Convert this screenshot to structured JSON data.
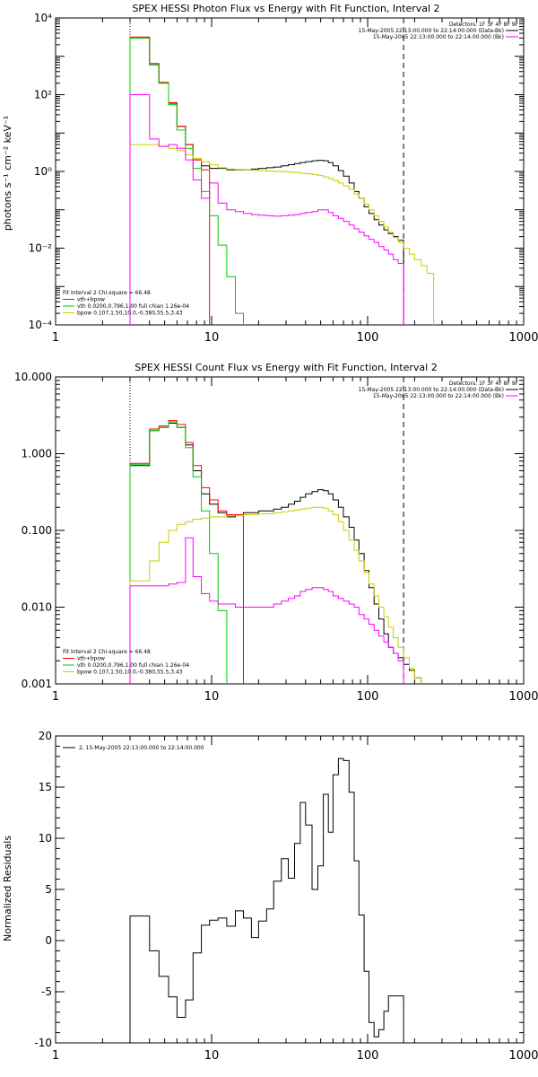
{
  "chart_data": [
    {
      "type": "line",
      "title": "SPEX HESSI Photon Flux vs Energy with Fit Function, Interval 2",
      "ylabel": "photons s⁻¹ cm⁻² keV⁻¹",
      "xlabel": "",
      "xscale": "log",
      "yscale": "log",
      "xlim": [
        1,
        1000
      ],
      "ylim": [
        0.0001,
        10000
      ],
      "xticks": [
        {
          "v": 1,
          "label": "1"
        },
        {
          "v": 10,
          "label": "10"
        },
        {
          "v": 100,
          "label": "100"
        },
        {
          "v": 1000,
          "label": "1000"
        }
      ],
      "yticks": [
        {
          "v": 0.0001,
          "label": "10⁻⁴"
        },
        {
          "v": 0.01,
          "label": "10⁻²"
        },
        {
          "v": 1,
          "label": "10⁰"
        },
        {
          "v": 100,
          "label": "10²"
        },
        {
          "v": 10000,
          "label": "10⁴"
        }
      ],
      "vlines": [
        {
          "x": 3,
          "style": "dotted"
        },
        {
          "x": 170,
          "style": "dashed"
        }
      ],
      "legend_right": {
        "lines": [
          "Detectors: 1F 3F 4F 8F 9F",
          "15-May-2005 22:13:00.000 to 22:14:00.000 (Data-Bk)",
          "15-May-2005 22:13:00.000 to 22:14:00.000 (Bk)"
        ],
        "colors": [
          null,
          "#000000",
          "#ff00ff"
        ]
      },
      "legend_left": {
        "lines": [
          "Fit Interval 2   Chi-square = 66.48",
          "vth+bpow",
          "vth 0.0200,0.796,1.00  full chian 1.26e-04",
          "bpow 0.107,1.50,10.0,-0.380,55.5,3.43"
        ],
        "colors": [
          null,
          "#ff0000",
          "#00cc00",
          "#cccc00"
        ]
      },
      "series": [
        {
          "color": "#000000",
          "edges": [
            3,
            3.4,
            4,
            4.6,
            5.3,
            6,
            6.8,
            7.6,
            8.6,
            9.7,
            11,
            12.5,
            14.2,
            16,
            18,
            20,
            22.5,
            25,
            28,
            31,
            34,
            37,
            40,
            44,
            48,
            52,
            56,
            60,
            65,
            70,
            76,
            82,
            88,
            95,
            102,
            110,
            118,
            127,
            136,
            146,
            157,
            170
          ],
          "values": [
            3000,
            3000,
            600,
            200,
            60,
            15,
            5,
            2,
            1.4,
            1.2,
            1.2,
            1.1,
            1.1,
            1.1,
            1.15,
            1.2,
            1.25,
            1.3,
            1.4,
            1.5,
            1.6,
            1.7,
            1.8,
            1.9,
            1.95,
            1.9,
            1.7,
            1.4,
            1.05,
            0.75,
            0.5,
            0.3,
            0.2,
            0.12,
            0.08,
            0.055,
            0.04,
            0.03,
            0.024,
            0.02,
            0.016
          ]
        },
        {
          "color": "#ff0000",
          "edges": [
            3,
            3.4,
            4,
            4.6,
            5.3,
            6,
            6.8,
            7.6,
            8.6,
            9.7
          ],
          "values": [
            3200,
            3200,
            650,
            210,
            62,
            15,
            5,
            2,
            1.1
          ]
        },
        {
          "color": "#00cc00",
          "edges": [
            3,
            3.4,
            4,
            4.6,
            5.3,
            6,
            6.8,
            7.6,
            8.6,
            9.7,
            11,
            12.5,
            14.2,
            16
          ],
          "values": [
            3000,
            3000,
            600,
            200,
            55,
            12,
            4,
            1.2,
            0.3,
            0.07,
            0.012,
            0.0018,
            0.0002
          ]
        },
        {
          "color": "#cccc00",
          "edges": [
            3,
            3.4,
            4,
            4.6,
            5.3,
            6,
            6.8,
            7.6,
            8.6,
            9.7,
            11,
            12.5,
            14.2,
            16,
            18,
            20,
            22.5,
            25,
            28,
            31,
            34,
            37,
            40,
            44,
            48,
            52,
            56,
            60,
            65,
            70,
            76,
            82,
            88,
            95,
            102,
            110,
            118,
            127,
            136,
            146,
            157,
            170,
            185,
            200,
            220,
            240,
            265,
            290
          ],
          "values": [
            5,
            5,
            5,
            4.6,
            4,
            3.5,
            2.7,
            2.2,
            1.8,
            1.5,
            1.25,
            1.15,
            1.12,
            1.1,
            1.08,
            1.05,
            1.02,
            1,
            0.98,
            0.96,
            0.93,
            0.9,
            0.87,
            0.83,
            0.78,
            0.72,
            0.65,
            0.58,
            0.5,
            0.42,
            0.34,
            0.26,
            0.2,
            0.14,
            0.1,
            0.07,
            0.05,
            0.036,
            0.026,
            0.019,
            0.014,
            0.01,
            0.007,
            0.005,
            0.0035,
            0.0022,
            8e-05
          ]
        },
        {
          "color": "#ff00ff",
          "edges": [
            3,
            3.4,
            4,
            4.6,
            5.3,
            6,
            6.8,
            7.6,
            8.6,
            9.7,
            11,
            12.5,
            14.2,
            16,
            18,
            20,
            22.5,
            25,
            28,
            31,
            34,
            37,
            40,
            44,
            48,
            52,
            56,
            60,
            65,
            70,
            76,
            82,
            88,
            95,
            102,
            110,
            118,
            127,
            136,
            146,
            157,
            170
          ],
          "values": [
            100,
            100,
            7,
            4.5,
            5,
            4,
            2,
            0.6,
            0.2,
            0.5,
            0.15,
            0.1,
            0.09,
            0.08,
            0.075,
            0.072,
            0.07,
            0.068,
            0.07,
            0.072,
            0.075,
            0.08,
            0.085,
            0.09,
            0.1,
            0.1,
            0.085,
            0.07,
            0.06,
            0.05,
            0.04,
            0.032,
            0.026,
            0.021,
            0.017,
            0.014,
            0.011,
            0.009,
            0.007,
            0.005,
            0.004
          ]
        }
      ]
    },
    {
      "type": "line",
      "title": "SPEX HESSI Count Flux vs Energy with Fit Function, Interval 2",
      "ylabel": "",
      "xlabel": "",
      "xscale": "log",
      "yscale": "log",
      "xlim": [
        1,
        1000
      ],
      "ylim": [
        0.001,
        10
      ],
      "xticks": [
        {
          "v": 1,
          "label": "1"
        },
        {
          "v": 10,
          "label": "10"
        },
        {
          "v": 100,
          "label": "100"
        },
        {
          "v": 1000,
          "label": "1000"
        }
      ],
      "yticks": [
        {
          "v": 0.001,
          "label": "0.001"
        },
        {
          "v": 0.01,
          "label": "0.010"
        },
        {
          "v": 0.1,
          "label": "0.100"
        },
        {
          "v": 1,
          "label": "1.000"
        },
        {
          "v": 10,
          "label": "10.000"
        }
      ],
      "vlines": [
        {
          "x": 3,
          "style": "dotted"
        },
        {
          "x": 170,
          "style": "dashed"
        }
      ],
      "legend_right": {
        "lines": [
          "Detectors: 1F 3F 4F 8F 9F",
          "15-May-2005 22:13:00.000 to 22:14:00.000 (Data-Bk)",
          "15-May-2005 22:13:00.000 to 22:14:00.000 (Bk)"
        ],
        "colors": [
          null,
          "#000000",
          "#ff00ff"
        ]
      },
      "legend_left": {
        "lines": [
          "Fit Interval 2   Chi-square = 66.48",
          "vth+bpow",
          "vth 0.0200,0.796,1.00  full chian 1.26e-04",
          "bpow 0.107,1.50,10.0,-0.380,55.5,3.43"
        ],
        "colors": [
          null,
          "#ff0000",
          "#00cc00",
          "#cccc00"
        ]
      },
      "series": [
        {
          "color": "#000000",
          "edges": [
            3,
            3.4,
            4,
            4.6,
            5.3,
            6,
            6.8,
            7.6,
            8.6,
            9.7,
            11,
            12.5,
            14.2,
            16,
            18,
            20,
            22.5,
            25,
            28,
            31,
            34,
            37,
            40,
            44,
            48,
            52,
            56,
            60,
            65,
            70,
            76,
            82,
            88,
            95,
            102,
            110,
            118,
            127,
            136,
            146,
            157,
            170,
            185,
            200,
            220
          ],
          "values": [
            0.7,
            0.7,
            2,
            2.2,
            2.5,
            2.2,
            1.3,
            0.6,
            0.3,
            0.22,
            0.17,
            0.15,
            0.16,
            0.17,
            0.17,
            0.18,
            0.18,
            0.19,
            0.2,
            0.22,
            0.24,
            0.27,
            0.3,
            0.32,
            0.34,
            0.33,
            0.3,
            0.25,
            0.2,
            0.15,
            0.11,
            0.075,
            0.05,
            0.03,
            0.018,
            0.011,
            0.007,
            0.0045,
            0.003,
            0.0025,
            0.0022,
            0.0018,
            0.0015,
            0.0012
          ]
        },
        {
          "color": "#ff0000",
          "edges": [
            3,
            3.4,
            4,
            4.6,
            5.3,
            6,
            6.8,
            7.6,
            8.6,
            9.7,
            11,
            12.5,
            14.2,
            16
          ],
          "values": [
            0.75,
            0.75,
            2.1,
            2.3,
            2.7,
            2.4,
            1.4,
            0.7,
            0.36,
            0.25,
            0.18,
            0.16,
            0.16
          ]
        },
        {
          "color": "#00cc00",
          "edges": [
            3,
            3.4,
            4,
            4.6,
            5.3,
            6,
            6.8,
            7.6,
            8.6,
            9.7,
            11,
            12.5
          ],
          "values": [
            0.72,
            0.72,
            2,
            2.2,
            2.6,
            2.2,
            1.2,
            0.5,
            0.18,
            0.05,
            0.009
          ]
        },
        {
          "color": "#cccc00",
          "edges": [
            3,
            3.4,
            4,
            4.6,
            5.3,
            6,
            6.8,
            7.6,
            8.6,
            9.7,
            11,
            12.5,
            14.2,
            16,
            18,
            20,
            22.5,
            25,
            28,
            31,
            34,
            37,
            40,
            44,
            48,
            52,
            56,
            60,
            65,
            70,
            76,
            82,
            88,
            95,
            102,
            110,
            118,
            127,
            136,
            146,
            157,
            170,
            185,
            200,
            220,
            240
          ],
          "values": [
            0.022,
            0.022,
            0.04,
            0.07,
            0.1,
            0.12,
            0.13,
            0.14,
            0.145,
            0.15,
            0.15,
            0.155,
            0.155,
            0.16,
            0.16,
            0.165,
            0.165,
            0.17,
            0.175,
            0.18,
            0.185,
            0.19,
            0.195,
            0.2,
            0.2,
            0.195,
            0.18,
            0.16,
            0.13,
            0.1,
            0.075,
            0.055,
            0.04,
            0.028,
            0.02,
            0.014,
            0.01,
            0.0075,
            0.0055,
            0.004,
            0.003,
            0.0022,
            0.0016,
            0.0012,
            0.0009
          ]
        },
        {
          "color": "#ff00ff",
          "edges": [
            3,
            3.4,
            4,
            4.6,
            5.3,
            6,
            6.8,
            7.6,
            8.6,
            9.7,
            11,
            12.5,
            14.2,
            16,
            18,
            20,
            22.5,
            25,
            28,
            31,
            34,
            37,
            40,
            44,
            48,
            52,
            56,
            60,
            65,
            70,
            76,
            82,
            88,
            95,
            102,
            110,
            118,
            127,
            136,
            146,
            157,
            170
          ],
          "values": [
            0.019,
            0.019,
            0.019,
            0.019,
            0.02,
            0.021,
            0.08,
            0.025,
            0.015,
            0.012,
            0.011,
            0.011,
            0.01,
            0.01,
            0.01,
            0.01,
            0.01,
            0.011,
            0.012,
            0.013,
            0.014,
            0.016,
            0.017,
            0.018,
            0.018,
            0.017,
            0.016,
            0.014,
            0.013,
            0.012,
            0.011,
            0.01,
            0.008,
            0.007,
            0.006,
            0.005,
            0.0042,
            0.0035,
            0.003,
            0.0025,
            0.002
          ]
        }
      ]
    },
    {
      "type": "line",
      "title": "",
      "ylabel": "Normalized Residuals",
      "xlabel": "",
      "xscale": "log",
      "yscale": "linear",
      "xlim": [
        1,
        1000
      ],
      "ylim": [
        -10,
        20
      ],
      "xticks": [
        {
          "v": 1,
          "label": "1"
        },
        {
          "v": 10,
          "label": "10"
        },
        {
          "v": 100,
          "label": "100"
        },
        {
          "v": 1000,
          "label": "1000"
        }
      ],
      "yticks": [
        {
          "v": -10,
          "label": "-10"
        },
        {
          "v": -5,
          "label": "-5"
        },
        {
          "v": 0,
          "label": "0"
        },
        {
          "v": 5,
          "label": "5"
        },
        {
          "v": 10,
          "label": "10"
        },
        {
          "v": 15,
          "label": "15"
        },
        {
          "v": 20,
          "label": "20"
        }
      ],
      "vlines": [],
      "legend_top": {
        "lines": [
          "2, 15-May-2005 22:13:00.000 to 22:14:00.000"
        ],
        "colors": [
          "#000000"
        ]
      },
      "series": [
        {
          "color": "#000000",
          "edges": [
            3,
            3.4,
            4,
            4.6,
            5.3,
            6,
            6.8,
            7.6,
            8.6,
            9.7,
            11,
            12.5,
            14.2,
            16,
            18,
            20,
            22.5,
            25,
            28,
            31,
            34,
            37,
            40,
            44,
            48,
            52,
            56,
            60,
            65,
            70,
            76,
            82,
            88,
            95,
            102,
            110,
            118,
            127,
            136,
            146,
            157,
            170
          ],
          "values": [
            2.4,
            2.4,
            -1,
            -3.5,
            -5.5,
            -7.5,
            -5.8,
            -1.2,
            1.5,
            2,
            2.2,
            1.4,
            2.9,
            2.2,
            0.3,
            1.9,
            3.1,
            5.8,
            8,
            6.1,
            9.5,
            13.5,
            11.3,
            5,
            7.3,
            14.3,
            10.6,
            16.2,
            17.8,
            17.6,
            14.5,
            7.8,
            2.5,
            -3,
            -8,
            -9.4,
            -8.7,
            -6.9,
            -5.4,
            -5.4,
            -5.4
          ]
        }
      ]
    }
  ]
}
